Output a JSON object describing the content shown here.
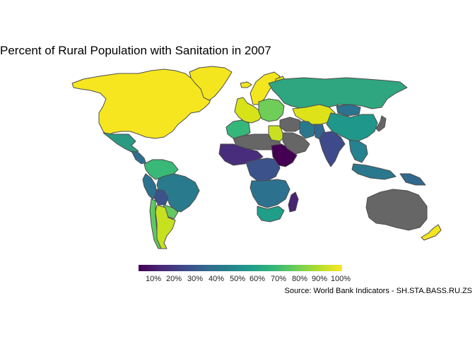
{
  "title": "Percent of Rural Population with Sanitation in 2007",
  "caption": "Source: World Bank Indicators - SH.STA.BASS.RU.ZS",
  "legend": {
    "ticks": [
      "10%",
      "20%",
      "30%",
      "40%",
      "50%",
      "60%",
      "70%",
      "80%",
      "90%",
      "100%"
    ],
    "colors": [
      "#440154",
      "#482878",
      "#3e4989",
      "#31688e",
      "#26828e",
      "#1f9e89",
      "#35b779",
      "#6ece58",
      "#b5de2b",
      "#fde725"
    ]
  },
  "missing_color": "#666666",
  "border_color": "#4d4d4d",
  "regions": {
    "north_america": {
      "name": "North America",
      "color": "#f6e620"
    },
    "mexico": {
      "name": "Mexico",
      "color": "#2a9a83"
    },
    "central_america": {
      "name": "Central America",
      "color": "#2e6e8e"
    },
    "south_america_north": {
      "name": "Colombia / Venezuela",
      "color": "#38b977"
    },
    "brazil": {
      "name": "Brazil",
      "color": "#2a7a8e"
    },
    "bolivia": {
      "name": "Bolivia",
      "color": "#3b528b"
    },
    "peru": {
      "name": "Peru",
      "color": "#2c728e"
    },
    "argentina": {
      "name": "Argentina",
      "color": "#c7e020"
    },
    "chile": {
      "name": "Chile",
      "color": "#5ec962"
    },
    "south_cone": {
      "name": "Paraguay / Uruguay",
      "color": "#66c860"
    },
    "greenland": {
      "name": "Greenland",
      "color": "#f3e51e"
    },
    "iceland": {
      "name": "Iceland",
      "color": "#f3e51e"
    },
    "scandinavia": {
      "name": "Scandinavia",
      "color": "#f3e51e"
    },
    "finland": {
      "name": "Finland",
      "color": "#e4e419"
    },
    "western_europe": {
      "name": "Western Europe",
      "color": "#d8e219"
    },
    "eastern_europe": {
      "name": "Eastern Europe",
      "color": "#6ece58"
    },
    "russia": {
      "name": "Russia",
      "color": "#2fa67f"
    },
    "central_asia": {
      "name": "Central Asia",
      "color": "#dde318"
    },
    "china": {
      "name": "China",
      "color": "#1f988b"
    },
    "mongolia": {
      "name": "Mongolia",
      "color": "#2c728e"
    },
    "north_africa_west": {
      "name": "Morocco / Algeria",
      "color": "#35b779"
    },
    "sahara": {
      "name": "Sahara",
      "color": "#666666"
    },
    "egypt": {
      "name": "Egypt",
      "color": "#c8e020"
    },
    "west_africa": {
      "name": "West Africa",
      "color": "#472d7b"
    },
    "central_africa": {
      "name": "Central Africa",
      "color": "#3b528b"
    },
    "east_africa": {
      "name": "East Africa",
      "color": "#440154"
    },
    "southern_africa": {
      "name": "Southern Africa",
      "color": "#2c728e"
    },
    "south_africa": {
      "name": "South Africa",
      "color": "#1f9e89"
    },
    "madagascar": {
      "name": "Madagascar",
      "color": "#482374"
    },
    "middle_east": {
      "name": "Middle East",
      "color": "#666666"
    },
    "iran": {
      "name": "Iran",
      "color": "#2a788e"
    },
    "arabia": {
      "name": "Arabia",
      "color": "#666666"
    },
    "pakistan": {
      "name": "Pakistan",
      "color": "#31688e"
    },
    "india": {
      "name": "India",
      "color": "#3e4a89"
    },
    "southeast_asia": {
      "name": "Southeast Asia",
      "color": "#26828e"
    },
    "indonesia": {
      "name": "Indonesia",
      "color": "#2a788e"
    },
    "papua": {
      "name": "Papua New Guinea",
      "color": "#31688e"
    },
    "japan": {
      "name": "Japan",
      "color": "#666666"
    },
    "australia": {
      "name": "Australia",
      "color": "#666666"
    },
    "new_zealand": {
      "name": "New Zealand",
      "color": "#f3e51e"
    }
  }
}
